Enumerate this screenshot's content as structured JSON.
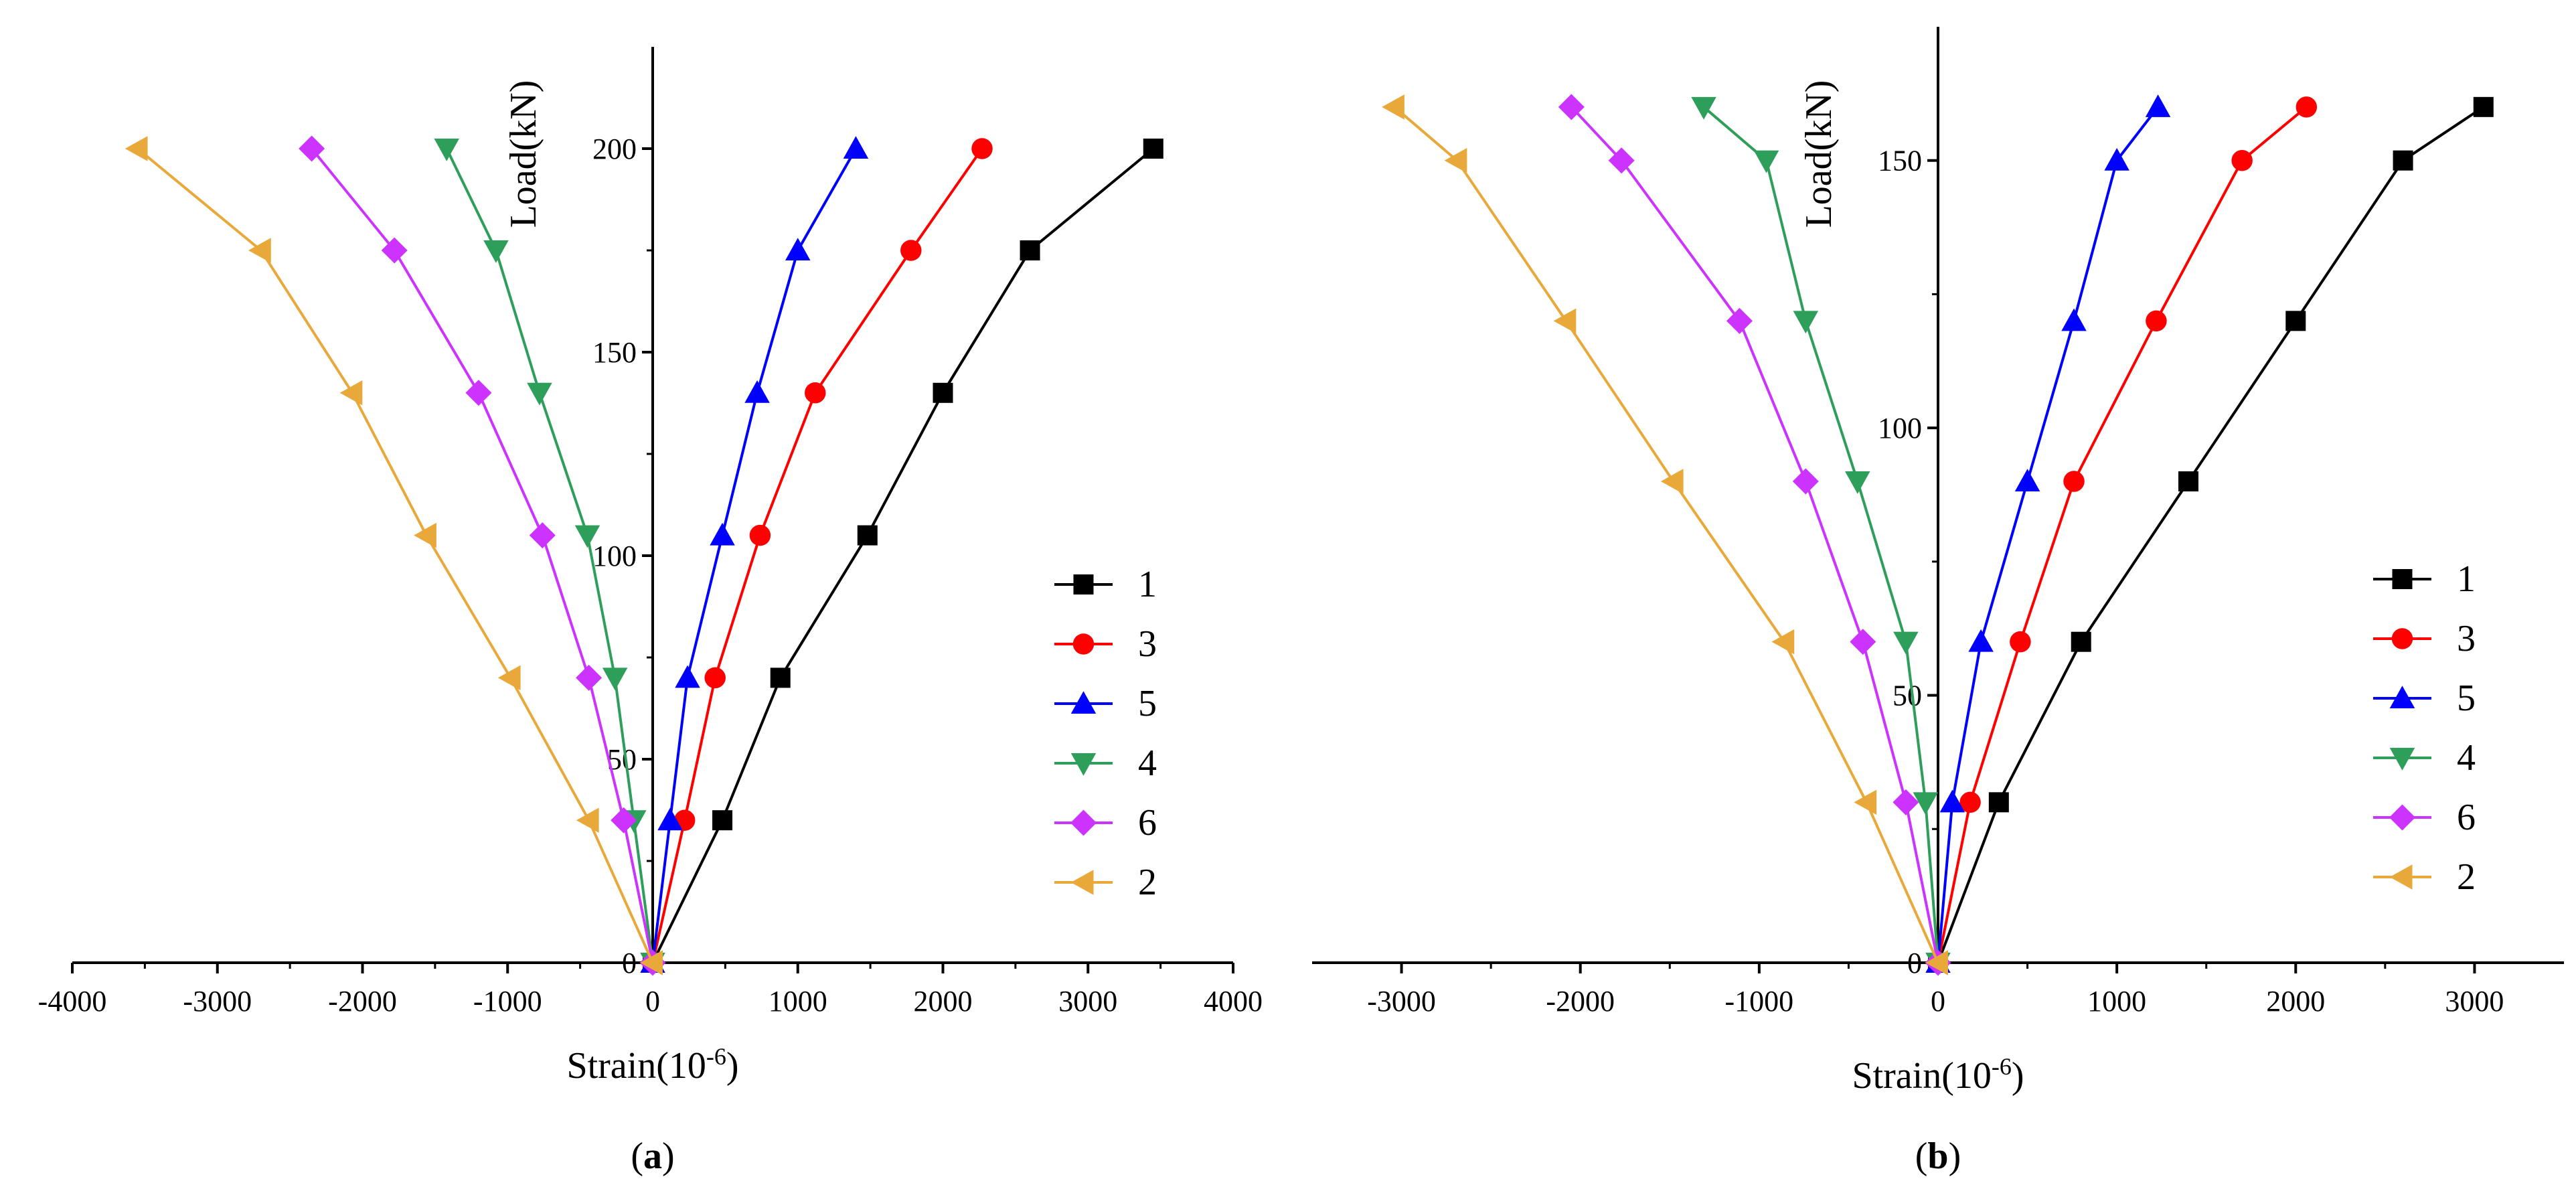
{
  "chart_data": [
    {
      "type": "line",
      "panel_label": "(a)",
      "panel_letter": "a",
      "xlabel": "Strain",
      "xlabel_exp": "-6",
      "ylabel": "Load(kN)",
      "xlim": [
        -4000,
        4000
      ],
      "ylim": [
        0,
        225
      ],
      "xticks": [
        -4000,
        -3000,
        -2000,
        -1000,
        0,
        1000,
        2000,
        3000,
        4000
      ],
      "yticks": [
        0,
        50,
        100,
        150,
        200
      ],
      "legend_position": "right",
      "series": [
        {
          "name": "1",
          "color": "#000000",
          "marker": "square",
          "x": [
            0,
            480,
            880,
            1480,
            2000,
            2600,
            3450
          ],
          "y": [
            0,
            35,
            70,
            105,
            140,
            175,
            200
          ]
        },
        {
          "name": "3",
          "color": "#ff0000",
          "marker": "circle",
          "x": [
            0,
            220,
            430,
            740,
            1120,
            1780,
            2270
          ],
          "y": [
            0,
            35,
            70,
            105,
            140,
            175,
            200
          ]
        },
        {
          "name": "5",
          "color": "#0000ff",
          "marker": "triangle-up",
          "x": [
            0,
            120,
            240,
            480,
            720,
            1000,
            1400
          ],
          "y": [
            0,
            35,
            70,
            105,
            140,
            175,
            200
          ]
        },
        {
          "name": "4",
          "color": "#2e9e5b",
          "marker": "triangle-down",
          "x": [
            0,
            -130,
            -260,
            -450,
            -780,
            -1080,
            -1420
          ],
          "y": [
            0,
            35,
            70,
            105,
            140,
            175,
            200
          ]
        },
        {
          "name": "6",
          "color": "#cc33ff",
          "marker": "diamond",
          "x": [
            0,
            -200,
            -440,
            -760,
            -1200,
            -1780,
            -2350
          ],
          "y": [
            0,
            35,
            70,
            105,
            140,
            175,
            200
          ]
        },
        {
          "name": "2",
          "color": "#e8a93a",
          "marker": "triangle-left",
          "x": [
            0,
            -440,
            -980,
            -1560,
            -2070,
            -2700,
            -3550
          ],
          "y": [
            0,
            35,
            70,
            105,
            140,
            175,
            200
          ]
        }
      ]
    },
    {
      "type": "line",
      "panel_label": "(b)",
      "panel_letter": "b",
      "xlabel": "Strain",
      "xlabel_exp": "-6",
      "ylabel": "Load(kN)",
      "xlim": [
        -3500,
        3500
      ],
      "ylim": [
        0,
        175
      ],
      "xticks": [
        -3000,
        -2000,
        -1000,
        0,
        1000,
        2000,
        3000
      ],
      "yticks": [
        0,
        50,
        100,
        150
      ],
      "legend_position": "right",
      "series": [
        {
          "name": "1",
          "color": "#000000",
          "marker": "square",
          "x": [
            0,
            340,
            800,
            1400,
            2000,
            2600,
            3050
          ],
          "y": [
            0,
            30,
            60,
            90,
            120,
            150,
            160
          ]
        },
        {
          "name": "3",
          "color": "#ff0000",
          "marker": "circle",
          "x": [
            0,
            180,
            460,
            760,
            1220,
            1700,
            2060
          ],
          "y": [
            0,
            30,
            60,
            90,
            120,
            150,
            160
          ]
        },
        {
          "name": "5",
          "color": "#0000ff",
          "marker": "triangle-up",
          "x": [
            0,
            80,
            240,
            500,
            760,
            1000,
            1230
          ],
          "y": [
            0,
            30,
            60,
            90,
            120,
            150,
            160
          ]
        },
        {
          "name": "4",
          "color": "#2e9e5b",
          "marker": "triangle-down",
          "x": [
            0,
            -70,
            -180,
            -450,
            -740,
            -960,
            -1310
          ],
          "y": [
            0,
            30,
            60,
            90,
            120,
            150,
            160
          ]
        },
        {
          "name": "6",
          "color": "#cc33ff",
          "marker": "diamond",
          "x": [
            0,
            -180,
            -420,
            -740,
            -1110,
            -1770,
            -2050
          ],
          "y": [
            0,
            30,
            60,
            90,
            120,
            150,
            160
          ]
        },
        {
          "name": "2",
          "color": "#e8a93a",
          "marker": "triangle-left",
          "x": [
            0,
            -400,
            -860,
            -1480,
            -2080,
            -2690,
            -3040
          ],
          "y": [
            0,
            30,
            60,
            90,
            120,
            150,
            160
          ]
        }
      ]
    }
  ]
}
